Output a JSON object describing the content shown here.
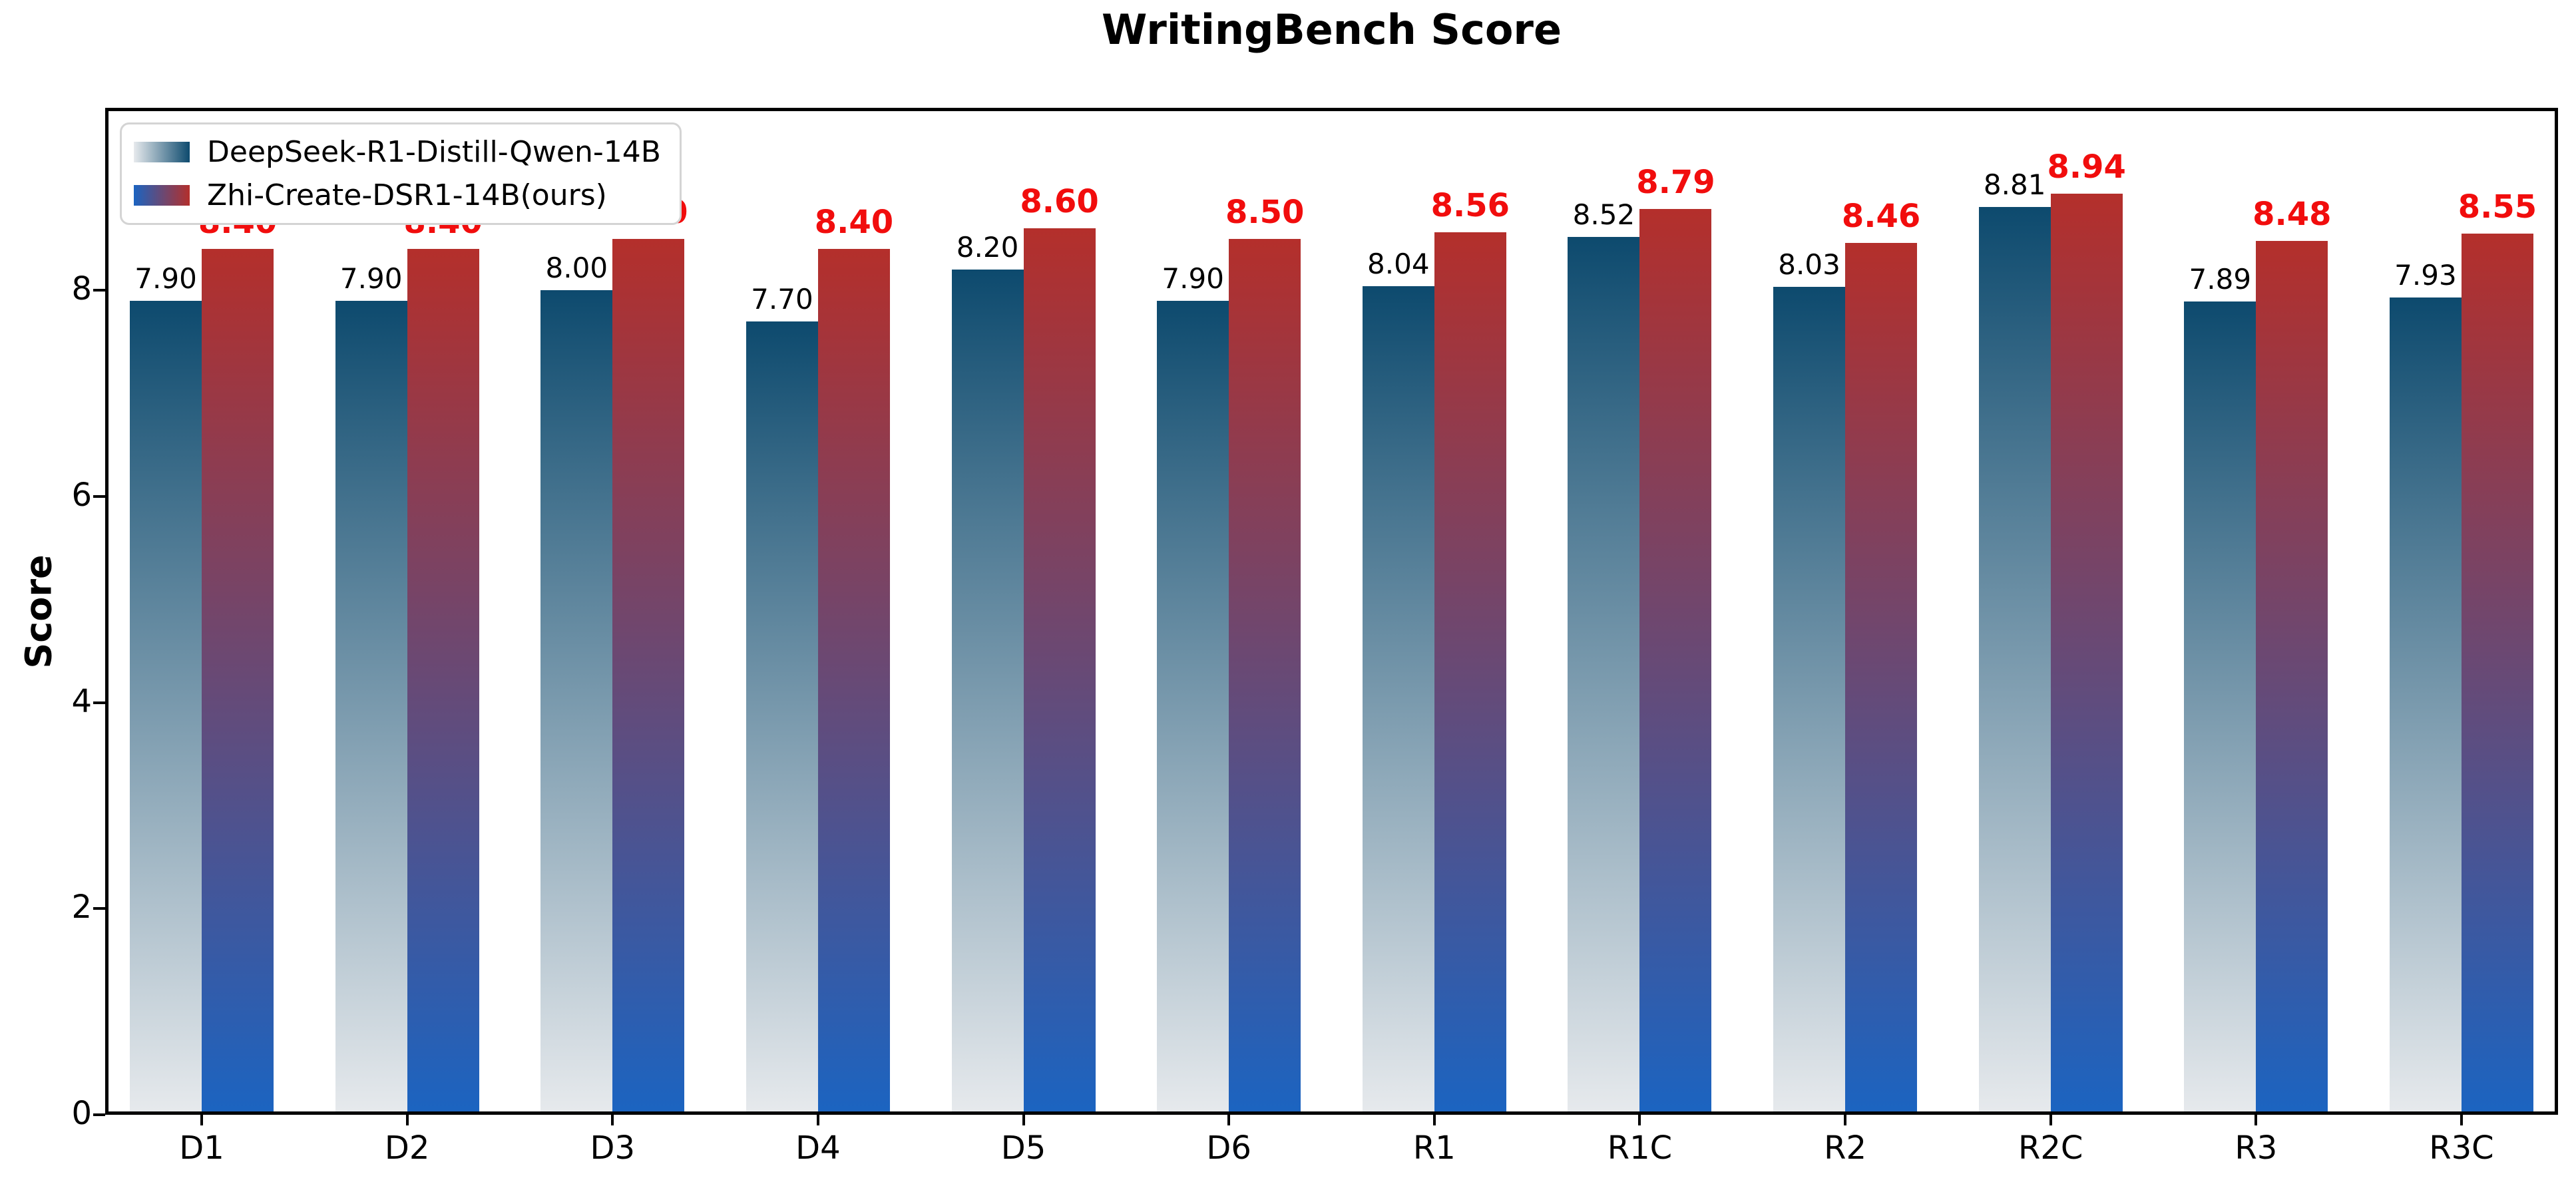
{
  "title": "WritingBench Score",
  "chart_data": {
    "type": "bar",
    "title": "WritingBench Score",
    "xlabel": "",
    "ylabel": "Score",
    "categories": [
      "D1",
      "D2",
      "D3",
      "D4",
      "D5",
      "D6",
      "R1",
      "R1C",
      "R2",
      "R2C",
      "R3",
      "R3C"
    ],
    "series": [
      {
        "name": "DeepSeek-R1-Distill-Qwen-14B",
        "values": [
          7.9,
          7.9,
          8.0,
          7.7,
          8.2,
          7.9,
          8.04,
          8.52,
          8.03,
          8.81,
          7.89,
          7.93
        ],
        "gradient_top_color": "#0d4a6e",
        "gradient_bottom_color": "#e7eaed",
        "value_label_color": "#000000"
      },
      {
        "name": "Zhi-Create-DSR1-14B(ours)",
        "values": [
          8.4,
          8.4,
          8.5,
          8.4,
          8.6,
          8.5,
          8.56,
          8.79,
          8.46,
          8.94,
          8.48,
          8.55
        ],
        "gradient_top_color": "#b42f2b",
        "gradient_bottom_color": "#1b64c1",
        "value_label_color": "#f10d0d"
      }
    ],
    "y_ticks": [
      0,
      2,
      4,
      6,
      8
    ],
    "ylim": [
      0,
      9.77
    ],
    "grid": false,
    "legend_position": "upper-left",
    "value_label_decimals": 2
  }
}
